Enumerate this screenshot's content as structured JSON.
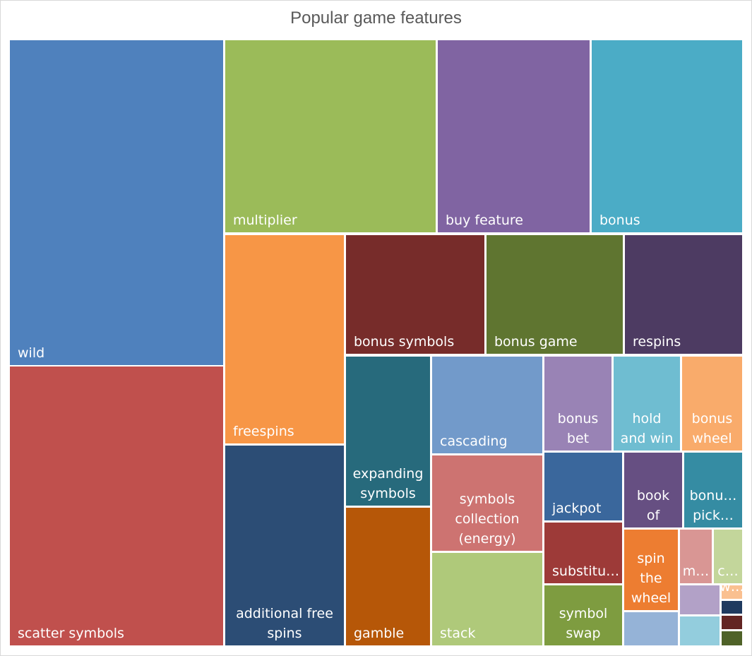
{
  "chart_data": {
    "type": "treemap",
    "title": "Popular game features",
    "tiles": [
      {
        "label": "wild",
        "lines": [
          "wild"
        ],
        "color": "#4f81bd"
      },
      {
        "label": "scatter symbols",
        "lines": [
          "scatter symbols"
        ],
        "color": "#c0504d"
      },
      {
        "label": "multiplier",
        "lines": [
          "multiplier"
        ],
        "color": "#9bbb59"
      },
      {
        "label": "buy feature",
        "lines": [
          "buy feature"
        ],
        "color": "#8064a2"
      },
      {
        "label": "bonus",
        "lines": [
          "bonus"
        ],
        "color": "#4bacc6"
      },
      {
        "label": "freespins",
        "lines": [
          "freespins"
        ],
        "color": "#f79646"
      },
      {
        "label": "additional free spins",
        "lines": [
          "additional free",
          "spins"
        ],
        "color": "#2c4d75"
      },
      {
        "label": "bonus symbols",
        "lines": [
          "bonus symbols"
        ],
        "color": "#772c2a"
      },
      {
        "label": "bonus game",
        "lines": [
          "bonus game"
        ],
        "color": "#5f7530"
      },
      {
        "label": "respins",
        "lines": [
          "respins"
        ],
        "color": "#4d3b62"
      },
      {
        "label": "expanding symbols",
        "lines": [
          "expanding",
          "symbols"
        ],
        "color": "#276a7c"
      },
      {
        "label": "gamble",
        "lines": [
          "gamble"
        ],
        "color": "#b65708"
      },
      {
        "label": "cascading",
        "lines": [
          "cascading"
        ],
        "color": "#729aca"
      },
      {
        "label": "symbols collection (energy)",
        "lines": [
          "symbols",
          "collection",
          "(energy)"
        ],
        "color": "#cd7371"
      },
      {
        "label": "stack",
        "lines": [
          "stack"
        ],
        "color": "#afc97a"
      },
      {
        "label": "bonus bet",
        "lines": [
          "bonus",
          "bet"
        ],
        "color": "#9983b5"
      },
      {
        "label": "hold and win",
        "lines": [
          "hold",
          "and win"
        ],
        "color": "#6fbdd1"
      },
      {
        "label": "bonus wheel",
        "lines": [
          "bonus",
          "wheel"
        ],
        "color": "#f9ab6b"
      },
      {
        "label": "jackpot",
        "lines": [
          "jackpot"
        ],
        "color": "#3a679c"
      },
      {
        "label": "book of",
        "lines": [
          "book",
          "of"
        ],
        "color": "#664f82"
      },
      {
        "label": "bonu… pick…",
        "lines": [
          "bonu…",
          "pick…"
        ],
        "color": "#358ca3"
      },
      {
        "label": "substitu…",
        "lines": [
          "substitu…"
        ],
        "color": "#9d3a38"
      },
      {
        "label": "spin the wheel",
        "lines": [
          "spin",
          "the",
          "wheel"
        ],
        "color": "#ed7d31"
      },
      {
        "label": "m…",
        "lines": [
          "m…"
        ],
        "color": "#d99694"
      },
      {
        "label": "c…",
        "lines": [
          "c…"
        ],
        "color": "#c3d69b"
      },
      {
        "label": "symbol swap",
        "lines": [
          "symbol",
          "swap"
        ],
        "color": "#7e9c40"
      },
      {
        "label": "",
        "lines": [],
        "color": "#b2a1c7"
      },
      {
        "label": "w…",
        "lines": [
          "w…"
        ],
        "color": "#fac090"
      },
      {
        "label": "",
        "lines": [],
        "color": "#95b3d7"
      },
      {
        "label": "",
        "lines": [],
        "color": "#93cddd"
      },
      {
        "label": "",
        "lines": [],
        "color": "#1f3a5f"
      },
      {
        "label": "",
        "lines": [],
        "color": "#632523"
      },
      {
        "label": "",
        "lines": [],
        "color": "#4f6228"
      }
    ]
  }
}
